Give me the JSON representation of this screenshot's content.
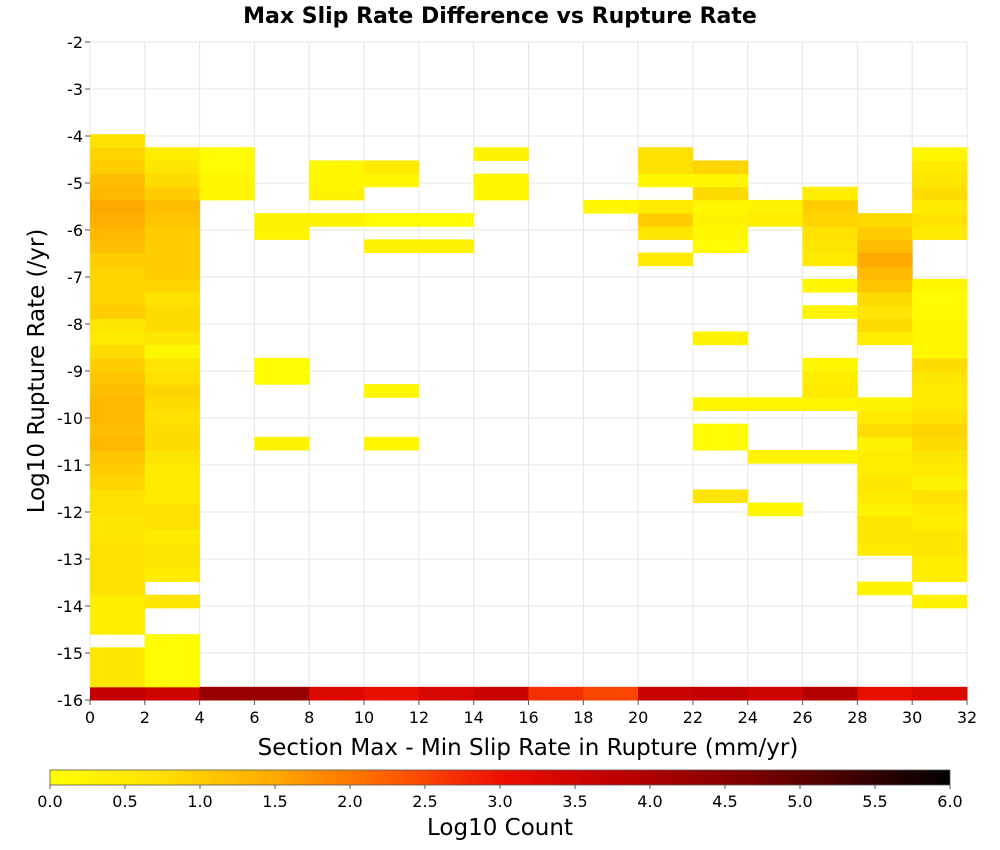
{
  "chart_data": {
    "type": "heatmap",
    "title": "Max Slip Rate Difference vs Rupture Rate",
    "xlabel": "Section Max - Min Slip Rate in Rupture (mm/yr)",
    "ylabel": "Log10 Rupture Rate (/yr)",
    "xlim": [
      0,
      32
    ],
    "ylim": [
      -16,
      -2
    ],
    "x_ticks": [
      "0",
      "2",
      "4",
      "6",
      "8",
      "10",
      "12",
      "14",
      "16",
      "18",
      "20",
      "22",
      "24",
      "26",
      "28",
      "30",
      "32"
    ],
    "y_ticks": [
      "-2",
      "-3",
      "-4",
      "-5",
      "-6",
      "-7",
      "-8",
      "-9",
      "-10",
      "-11",
      "-12",
      "-13",
      "-14",
      "-15",
      "-16"
    ],
    "grid": true,
    "x_bin_width": 2,
    "y_bin_height": 0.28,
    "colorbar": {
      "label": "Log10 Count",
      "range": [
        0,
        6
      ],
      "ticks": [
        "0.0",
        "0.5",
        "1.0",
        "1.5",
        "2.0",
        "2.5",
        "3.0",
        "3.5",
        "4.0",
        "4.5",
        "5.0",
        "5.5",
        "6.0"
      ]
    },
    "columns": [
      {
        "x": 0,
        "y_bottom": -16.0,
        "values": [
          3.7,
          0.6,
          0.6,
          0.6,
          null,
          0.4,
          0.4,
          0.4,
          0.7,
          0.7,
          0.7,
          0.7,
          0.6,
          0.6,
          0.7,
          0.7,
          0.9,
          1.0,
          1.1,
          1.3,
          1.2,
          1.3,
          1.3,
          1.2,
          1.1,
          1.0,
          0.8,
          0.5,
          0.6,
          1.0,
          0.9,
          0.9,
          0.9,
          1.0,
          1.2,
          1.3,
          1.4,
          1.5,
          1.3,
          1.2,
          1.0,
          0.9,
          0.7,
          null,
          null,
          null,
          null,
          null,
          null,
          null
        ]
      },
      {
        "x": 2,
        "y_bottom": -16.0,
        "values": [
          3.5,
          0.1,
          0.1,
          0.1,
          0.1,
          null,
          null,
          0.6,
          null,
          0.5,
          0.6,
          0.6,
          0.5,
          0.7,
          0.7,
          0.5,
          0.5,
          0.5,
          0.6,
          0.8,
          0.8,
          0.7,
          0.8,
          0.9,
          0.7,
          0.6,
          0.2,
          0.6,
          0.8,
          0.8,
          0.7,
          0.9,
          1.0,
          1.0,
          1.0,
          1.0,
          1.1,
          1.2,
          1.0,
          0.8,
          0.6,
          0.4,
          null,
          null,
          null,
          null,
          null,
          null,
          null,
          null
        ]
      },
      {
        "x": 4,
        "y_bottom": -16.0,
        "values": [
          4.3,
          null,
          null,
          null,
          null,
          null,
          null,
          null,
          null,
          null,
          null,
          null,
          null,
          null,
          null,
          null,
          null,
          null,
          null,
          null,
          null,
          null,
          null,
          null,
          null,
          null,
          null,
          null,
          null,
          null,
          null,
          null,
          null,
          null,
          null,
          null,
          null,
          null,
          0.2,
          0.2,
          0.1,
          0.1,
          null,
          null,
          null,
          null,
          null,
          null,
          null,
          null
        ]
      },
      {
        "x": 6,
        "y_bottom": -16.0,
        "values": [
          4.3,
          null,
          null,
          null,
          null,
          null,
          null,
          null,
          null,
          null,
          null,
          null,
          null,
          null,
          null,
          null,
          null,
          null,
          null,
          0.3,
          null,
          null,
          null,
          null,
          0.1,
          0.1,
          null,
          null,
          null,
          null,
          null,
          null,
          null,
          null,
          null,
          0.3,
          0.3,
          null,
          null,
          null,
          null,
          null,
          null,
          null,
          null,
          null,
          null,
          null,
          null,
          null
        ]
      },
      {
        "x": 8,
        "y_bottom": -16.0,
        "values": [
          3.3,
          null,
          null,
          null,
          null,
          null,
          null,
          null,
          null,
          null,
          null,
          null,
          null,
          null,
          null,
          null,
          null,
          null,
          null,
          null,
          null,
          null,
          null,
          null,
          null,
          null,
          null,
          null,
          null,
          null,
          null,
          null,
          null,
          null,
          null,
          null,
          0.3,
          null,
          0.3,
          0.2,
          0.2,
          null,
          null,
          null,
          null,
          null,
          null,
          null,
          null,
          null
        ]
      },
      {
        "x": 10,
        "y_bottom": -16.0,
        "values": [
          3.1,
          null,
          null,
          null,
          null,
          null,
          null,
          null,
          null,
          null,
          null,
          null,
          null,
          null,
          null,
          null,
          null,
          null,
          null,
          0.2,
          null,
          null,
          null,
          0.2,
          null,
          null,
          null,
          null,
          null,
          null,
          null,
          null,
          null,
          null,
          0.3,
          null,
          0.1,
          null,
          null,
          0.2,
          0.5,
          null,
          null,
          null,
          null,
          null,
          null,
          null,
          null,
          null
        ]
      },
      {
        "x": 12,
        "y_bottom": -16.0,
        "values": [
          3.4,
          null,
          null,
          null,
          null,
          null,
          null,
          null,
          null,
          null,
          null,
          null,
          null,
          null,
          null,
          null,
          null,
          null,
          null,
          null,
          null,
          null,
          null,
          null,
          null,
          null,
          null,
          null,
          null,
          null,
          null,
          null,
          null,
          null,
          0.3,
          null,
          0.1,
          null,
          null,
          null,
          null,
          null,
          null,
          null,
          null,
          null,
          null,
          null,
          null,
          null
        ]
      },
      {
        "x": 14,
        "y_bottom": -16.0,
        "values": [
          3.6,
          null,
          null,
          null,
          null,
          null,
          null,
          null,
          null,
          null,
          null,
          null,
          null,
          null,
          null,
          null,
          null,
          null,
          null,
          null,
          null,
          null,
          null,
          null,
          null,
          null,
          null,
          null,
          null,
          null,
          null,
          null,
          null,
          null,
          null,
          null,
          null,
          null,
          0.2,
          0.2,
          null,
          0.3,
          null,
          null,
          null,
          null,
          null,
          null,
          null,
          null
        ]
      },
      {
        "x": 16,
        "y_bottom": -16.0,
        "values": [
          2.7,
          null,
          null,
          null,
          null,
          null,
          null,
          null,
          null,
          null,
          null,
          null,
          null,
          null,
          null,
          null,
          null,
          null,
          null,
          null,
          null,
          null,
          null,
          null,
          null,
          null,
          null,
          null,
          null,
          null,
          null,
          null,
          null,
          null,
          null,
          null,
          null,
          null,
          null,
          null,
          null,
          null,
          null,
          null,
          null,
          null,
          null,
          null,
          null,
          null
        ]
      },
      {
        "x": 18,
        "y_bottom": -16.0,
        "values": [
          2.5,
          null,
          null,
          null,
          null,
          null,
          null,
          null,
          null,
          null,
          null,
          null,
          null,
          null,
          null,
          null,
          null,
          null,
          null,
          null,
          null,
          null,
          null,
          null,
          null,
          null,
          null,
          null,
          null,
          null,
          null,
          null,
          null,
          null,
          null,
          null,
          null,
          0.2,
          null,
          null,
          null,
          null,
          null,
          null,
          null,
          null,
          null,
          null,
          null,
          null
        ]
      },
      {
        "x": 20,
        "y_bottom": -16.0,
        "values": [
          3.6,
          null,
          null,
          null,
          null,
          null,
          null,
          null,
          null,
          null,
          null,
          null,
          null,
          null,
          null,
          null,
          null,
          null,
          null,
          null,
          null,
          null,
          null,
          null,
          null,
          null,
          null,
          null,
          null,
          null,
          null,
          null,
          null,
          0.5,
          null,
          0.6,
          1.0,
          0.5,
          null,
          0.2,
          0.7,
          0.7,
          null,
          null,
          null,
          null,
          null,
          null,
          null,
          null
        ]
      },
      {
        "x": 22,
        "y_bottom": -16.0,
        "values": [
          3.7,
          null,
          null,
          null,
          null,
          null,
          null,
          null,
          null,
          null,
          null,
          null,
          null,
          null,
          null,
          0.6,
          null,
          null,
          null,
          0.1,
          0.1,
          null,
          0.2,
          null,
          null,
          null,
          null,
          0.3,
          null,
          null,
          null,
          null,
          null,
          null,
          0.1,
          0.2,
          0.3,
          0.2,
          0.8,
          0.2,
          0.9,
          null,
          null,
          null,
          null,
          null,
          null,
          null,
          null,
          null
        ]
      },
      {
        "x": 24,
        "y_bottom": -16.0,
        "values": [
          3.5,
          null,
          null,
          null,
          null,
          null,
          null,
          null,
          null,
          null,
          null,
          null,
          null,
          null,
          0.2,
          null,
          null,
          null,
          0.3,
          null,
          null,
          null,
          0.2,
          null,
          null,
          null,
          null,
          null,
          null,
          null,
          null,
          null,
          null,
          null,
          null,
          null,
          0.4,
          0.3,
          null,
          null,
          null,
          null,
          null,
          null,
          null,
          null,
          null,
          null,
          null,
          null
        ]
      },
      {
        "x": 26,
        "y_bottom": -16.0,
        "values": [
          3.9,
          null,
          null,
          null,
          null,
          null,
          null,
          null,
          null,
          null,
          null,
          null,
          null,
          null,
          null,
          null,
          null,
          null,
          0.3,
          null,
          null,
          null,
          0.2,
          0.5,
          0.4,
          0.2,
          null,
          null,
          null,
          0.3,
          null,
          0.2,
          null,
          0.5,
          0.6,
          0.7,
          0.9,
          1.0,
          0.4,
          null,
          null,
          null,
          null,
          null,
          null,
          null,
          null,
          null,
          null,
          null
        ]
      },
      {
        "x": 28,
        "y_bottom": -16.0,
        "values": [
          3.1,
          null,
          null,
          null,
          null,
          null,
          null,
          null,
          0.3,
          null,
          null,
          0.5,
          0.6,
          0.6,
          0.3,
          0.5,
          0.6,
          0.4,
          0.4,
          0.3,
          0.8,
          0.5,
          0.3,
          null,
          null,
          null,
          null,
          0.4,
          0.8,
          0.6,
          0.8,
          1.1,
          1.3,
          1.5,
          1.2,
          1.0,
          0.8,
          null,
          null,
          null,
          null,
          null,
          null,
          null,
          null,
          null,
          null,
          null,
          null,
          null
        ]
      },
      {
        "x": 30,
        "y_bottom": -16.0,
        "values": [
          3.3,
          null,
          null,
          null,
          null,
          null,
          null,
          0.3,
          null,
          0.4,
          0.4,
          0.6,
          0.6,
          0.4,
          0.5,
          0.7,
          0.3,
          0.5,
          0.6,
          0.8,
          0.9,
          0.7,
          0.5,
          0.5,
          0.6,
          0.8,
          0.2,
          0.2,
          0.2,
          0.1,
          0.1,
          0.2,
          null,
          null,
          null,
          0.5,
          0.7,
          0.5,
          0.8,
          0.6,
          0.5,
          0.2,
          null,
          null,
          null,
          null,
          null,
          null,
          null,
          null
        ]
      }
    ]
  }
}
